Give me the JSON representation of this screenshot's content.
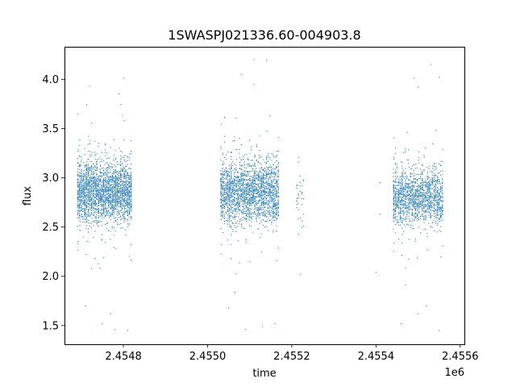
{
  "chart_data": {
    "type": "scatter",
    "title": "1SWASPJ021336.60-004903.8",
    "xlabel": "time",
    "ylabel": "flux",
    "x_offset_label": "1e6",
    "xlim": [
      2.45466,
      2.45561
    ],
    "ylim": [
      1.31,
      4.33
    ],
    "x_ticks": [
      2.4548,
      2.455,
      2.4552,
      2.4554,
      2.4556
    ],
    "x_tick_labels": [
      "2.4548",
      "2.4550",
      "2.4552",
      "2.4554",
      "2.4556"
    ],
    "y_ticks": [
      1.5,
      2.0,
      2.5,
      3.0,
      3.5,
      4.0
    ],
    "y_tick_labels": [
      "1.5",
      "2.0",
      "2.5",
      "3.0",
      "3.5",
      "4.0"
    ],
    "grid": false,
    "legend": "none",
    "point_color": "#1f77b4",
    "series": [
      {
        "segments": [
          {
            "x_start": 2.45469,
            "x_end": 2.45482,
            "y_center": 2.85,
            "y_spread": 0.3,
            "points": 2600,
            "outliers": [
              [
                2.45471,
                1.7
              ],
              [
                2.45475,
                1.52
              ],
              [
                2.45478,
                1.46
              ],
              [
                2.45481,
                1.45
              ],
              [
                2.4548,
                4.01
              ],
              [
                2.45472,
                3.93
              ],
              [
                2.45477,
                1.62
              ],
              [
                2.45479,
                3.85
              ]
            ]
          },
          {
            "x_start": 2.45503,
            "x_end": 2.45517,
            "y_center": 2.85,
            "y_spread": 0.32,
            "points": 2600,
            "outliers": [
              [
                2.45508,
                4.05
              ],
              [
                2.45511,
                4.2
              ],
              [
                2.45514,
                4.19
              ],
              [
                2.45513,
                1.49
              ],
              [
                2.45509,
                1.46
              ],
              [
                2.45505,
                1.68
              ],
              [
                2.45516,
                1.52
              ],
              [
                2.45511,
                3.95
              ]
            ]
          },
          {
            "x_start": 2.45521,
            "x_end": 2.45523,
            "y_center": 2.75,
            "y_spread": 0.3,
            "points": 35,
            "outliers": [
              [
                2.45522,
                2.02
              ],
              [
                2.45522,
                2.92
              ]
            ]
          },
          {
            "x_start": 2.45544,
            "x_end": 2.45556,
            "y_center": 2.8,
            "y_spread": 0.28,
            "points": 1600,
            "outliers": [
              [
                2.45549,
                4.01
              ],
              [
                2.4555,
                3.92
              ],
              [
                2.45553,
                4.15
              ],
              [
                2.45555,
                4.02
              ],
              [
                2.45546,
                1.52
              ],
              [
                2.4555,
                1.62
              ],
              [
                2.45555,
                1.45
              ],
              [
                2.45552,
                1.7
              ],
              [
                2.4554,
                2.04
              ],
              [
                2.45541,
                2.63
              ],
              [
                2.45541,
                2.95
              ]
            ]
          }
        ]
      }
    ]
  }
}
